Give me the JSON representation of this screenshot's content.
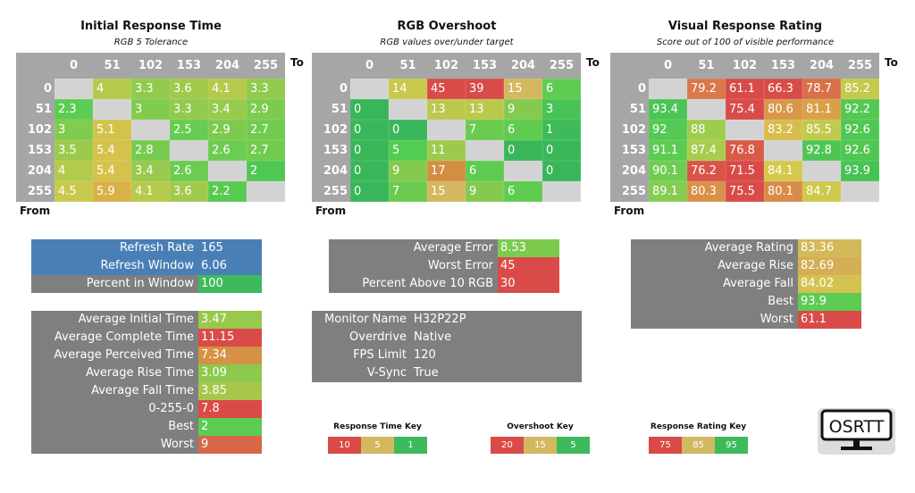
{
  "columns": [
    "0",
    "51",
    "102",
    "153",
    "204",
    "255"
  ],
  "to_label": "To",
  "from_label": "From",
  "heatmaps": [
    {
      "title": "Initial Response Time",
      "subtitle": "RGB 5 Tolerance",
      "scale": "response",
      "rows": [
        [
          null,
          "4",
          "3.3",
          "3.6",
          "4.1",
          "3.3"
        ],
        [
          "2.3",
          null,
          "3",
          "3.3",
          "3.4",
          "2.9"
        ],
        [
          "3",
          "5.1",
          null,
          "2.5",
          "2.9",
          "2.7"
        ],
        [
          "3.5",
          "5.4",
          "2.8",
          null,
          "2.6",
          "2.7"
        ],
        [
          "4",
          "5.4",
          "3.4",
          "2.6",
          null,
          "2"
        ],
        [
          "4.5",
          "5.9",
          "4.1",
          "3.6",
          "2.2",
          null
        ]
      ]
    },
    {
      "title": "RGB Overshoot",
      "subtitle": "RGB values over/under target",
      "scale": "overshoot",
      "rows": [
        [
          null,
          "14",
          "45",
          "39",
          "15",
          "6"
        ],
        [
          "0",
          null,
          "13",
          "13",
          "9",
          "3"
        ],
        [
          "0",
          "0",
          null,
          "7",
          "6",
          "1"
        ],
        [
          "0",
          "5",
          "11",
          null,
          "0",
          "0"
        ],
        [
          "0",
          "9",
          "17",
          "6",
          null,
          "0"
        ],
        [
          "0",
          "7",
          "15",
          "9",
          "6",
          null
        ]
      ]
    },
    {
      "title": "Visual Response Rating",
      "subtitle": "Score out of 100 of visible performance",
      "scale": "rating",
      "rows": [
        [
          null,
          "79.2",
          "61.1",
          "66.3",
          "78.7",
          "85.2"
        ],
        [
          "93.4",
          null,
          "75.4",
          "80.6",
          "81.1",
          "92.2"
        ],
        [
          "92",
          "88",
          null,
          "83.2",
          "85.5",
          "92.6"
        ],
        [
          "91.1",
          "87.4",
          "76.8",
          null,
          "92.8",
          "92.6"
        ],
        [
          "90.1",
          "76.2",
          "71.5",
          "84.1",
          null,
          "93.9"
        ],
        [
          "89.1",
          "80.3",
          "75.5",
          "80.1",
          "84.7",
          null
        ]
      ]
    }
  ],
  "refresh_panel": [
    {
      "label": "Refresh Rate",
      "value": "165",
      "label_bg": "#4a7fb5",
      "value_bg": "#4a7fb5"
    },
    {
      "label": "Refresh Window",
      "value": "6.06",
      "label_bg": "#4a7fb5",
      "value_bg": "#4a7fb5"
    },
    {
      "label": "Percent in Window",
      "value": "100",
      "label_bg": "#7f7f7f",
      "value_bg": "#3dba5c"
    }
  ],
  "time_panel": [
    {
      "label": "Average Initial Time",
      "value": "3.47",
      "value_bg": "#97c94c"
    },
    {
      "label": "Average Complete Time",
      "value": "11.15",
      "value_bg": "#d94b48"
    },
    {
      "label": "Average Perceived Time",
      "value": "7.34",
      "value_bg": "#d69146"
    },
    {
      "label": "Average Rise Time",
      "value": "3.09",
      "value_bg": "#8dc94c"
    },
    {
      "label": "Average Fall Time",
      "value": "3.85",
      "value_bg": "#a8c64c"
    },
    {
      "label": "0-255-0",
      "value": "7.8",
      "value_bg": "#d94b48"
    },
    {
      "label": "Best",
      "value": "2",
      "value_bg": "#5ccc52"
    },
    {
      "label": "Worst",
      "value": "9",
      "value_bg": "#d8674a"
    }
  ],
  "overshoot_panel": [
    {
      "label": "Average Error",
      "value": "8.53",
      "value_bg": "#7ccb4e"
    },
    {
      "label": "Worst Error",
      "value": "45",
      "value_bg": "#d94b48"
    },
    {
      "label": "Percent Above 10 RGB",
      "value": "30",
      "value_bg": "#d94b48"
    }
  ],
  "monitor_panel": [
    {
      "label": "Monitor Name",
      "value": "H32P22P"
    },
    {
      "label": "Overdrive",
      "value": "Native"
    },
    {
      "label": "FPS Limit",
      "value": "120"
    },
    {
      "label": "V-Sync",
      "value": "True"
    }
  ],
  "rating_panel": [
    {
      "label": "Average Rating",
      "value": "83.36",
      "value_bg": "#d4b95a"
    },
    {
      "label": "Average Rise",
      "value": "82.69",
      "value_bg": "#d5ae55"
    },
    {
      "label": "Average Fall",
      "value": "84.02",
      "value_bg": "#d4c250"
    },
    {
      "label": "Best",
      "value": "93.9",
      "value_bg": "#5ccc52"
    },
    {
      "label": "Worst",
      "value": "61.1",
      "value_bg": "#d94b48"
    }
  ],
  "keys": [
    {
      "title": "Response Time Key",
      "values": [
        "10",
        "5",
        "1"
      ]
    },
    {
      "title": "Overshoot Key",
      "values": [
        "20",
        "15",
        "5"
      ]
    },
    {
      "title": "Response Rating Key",
      "values": [
        "75",
        "85",
        "95"
      ]
    }
  ],
  "key_colors": [
    "#d94b48",
    "#d4b860",
    "#3dba5c"
  ],
  "logo_text": "OSRTT"
}
